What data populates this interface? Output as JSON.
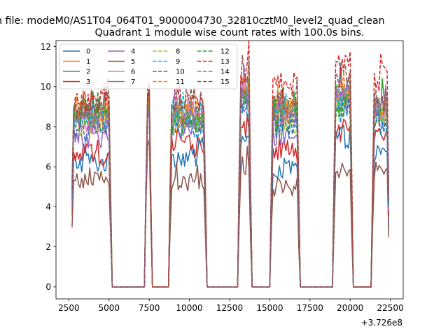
{
  "figure": {
    "suptitle": "n file: modeM0/AS1T04_064T01_9000004730_32810cztM0_level2_quad_clean"
  },
  "chart_data": {
    "type": "line",
    "title": "Quadrant 1 module wise count rates with 100.0s bins.",
    "xlabel": "",
    "ylabel": "",
    "x_offset_label": "+3.726e8",
    "xlim": [
      1700,
      23300
    ],
    "ylim": [
      -0.6,
      12.3
    ],
    "xticks": [
      2500,
      5000,
      7500,
      10000,
      12500,
      15000,
      17500,
      20000,
      22500
    ],
    "xtick_labels": [
      "2500",
      "5000",
      "7500",
      "10000",
      "12500",
      "15000",
      "17500",
      "20000",
      "22500"
    ],
    "yticks": [
      0,
      2,
      4,
      6,
      8,
      10,
      12
    ],
    "ytick_labels": [
      "0",
      "2",
      "4",
      "6",
      "8",
      "10",
      "12"
    ],
    "grid": false,
    "legend_placement": "top-left",
    "legend_columns": 4,
    "bin_width": 100,
    "active_segments": [
      [
        2700,
        5100
      ],
      [
        7300,
        7600
      ],
      [
        8800,
        11000
      ],
      [
        13100,
        13800
      ],
      [
        15100,
        16800
      ],
      [
        19000,
        20100
      ],
      [
        21400,
        22400
      ]
    ],
    "series": [
      {
        "name": "0",
        "color": "#1f77b4",
        "dash": "solid",
        "levels": [
          6.2,
          8.9,
          6.5,
          7.3,
          5.9,
          7.5,
          6.6
        ]
      },
      {
        "name": "1",
        "color": "#ff7f0e",
        "dash": "solid",
        "levels": [
          8.6,
          9.2,
          8.3,
          9.8,
          8.8,
          9.6,
          8.8
        ]
      },
      {
        "name": "2",
        "color": "#2ca02c",
        "dash": "solid",
        "levels": [
          8.8,
          9.4,
          8.6,
          10.0,
          9.1,
          9.7,
          9.0
        ]
      },
      {
        "name": "3",
        "color": "#d62728",
        "dash": "solid",
        "levels": [
          6.6,
          8.8,
          7.0,
          8.0,
          6.9,
          7.8,
          7.4
        ]
      },
      {
        "name": "4",
        "color": "#9467bd",
        "dash": "solid",
        "levels": [
          7.4,
          8.8,
          8.0,
          8.8,
          7.6,
          9.4,
          8.4
        ]
      },
      {
        "name": "5",
        "color": "#8c564b",
        "dash": "solid",
        "levels": [
          5.3,
          7.0,
          5.2,
          6.0,
          5.0,
          5.8,
          5.6
        ]
      },
      {
        "name": "6",
        "color": "#e377c2",
        "dash": "solid",
        "levels": [
          8.2,
          8.9,
          8.4,
          9.4,
          8.6,
          9.2,
          8.6
        ]
      },
      {
        "name": "7",
        "color": "#7f7f7f",
        "dash": "solid",
        "levels": [
          8.7,
          9.1,
          8.5,
          9.6,
          8.9,
          9.8,
          8.9
        ]
      },
      {
        "name": "8",
        "color": "#bcbd22",
        "dash": "dashed",
        "levels": [
          8.1,
          9.0,
          8.2,
          9.4,
          8.2,
          9.0,
          8.4
        ]
      },
      {
        "name": "9",
        "color": "#17becf",
        "dash": "dashed",
        "levels": [
          8.5,
          9.0,
          8.4,
          9.5,
          8.6,
          9.3,
          8.6
        ]
      },
      {
        "name": "10",
        "color": "#1f77b4",
        "dash": "dashed",
        "levels": [
          7.9,
          8.9,
          7.8,
          9.0,
          8.0,
          8.8,
          8.0
        ]
      },
      {
        "name": "11",
        "color": "#ff7f0e",
        "dash": "dashed",
        "levels": [
          8.6,
          9.1,
          8.6,
          9.8,
          8.9,
          9.8,
          9.0
        ]
      },
      {
        "name": "12",
        "color": "#2ca02c",
        "dash": "dashed",
        "levels": [
          8.4,
          9.0,
          8.1,
          9.3,
          8.3,
          9.0,
          8.4
        ]
      },
      {
        "name": "13",
        "color": "#d62728",
        "dash": "dashed",
        "levels": [
          9.2,
          9.6,
          9.5,
          10.8,
          10.1,
          11.1,
          10.4
        ]
      },
      {
        "name": "14",
        "color": "#9467bd",
        "dash": "dashed",
        "levels": [
          8.3,
          9.0,
          8.5,
          9.8,
          8.5,
          9.9,
          8.8
        ]
      },
      {
        "name": "15",
        "color": "#8c564b",
        "dash": "dashed",
        "levels": [
          9.0,
          9.5,
          9.3,
          10.6,
          9.3,
          10.4,
          9.4
        ]
      }
    ]
  }
}
